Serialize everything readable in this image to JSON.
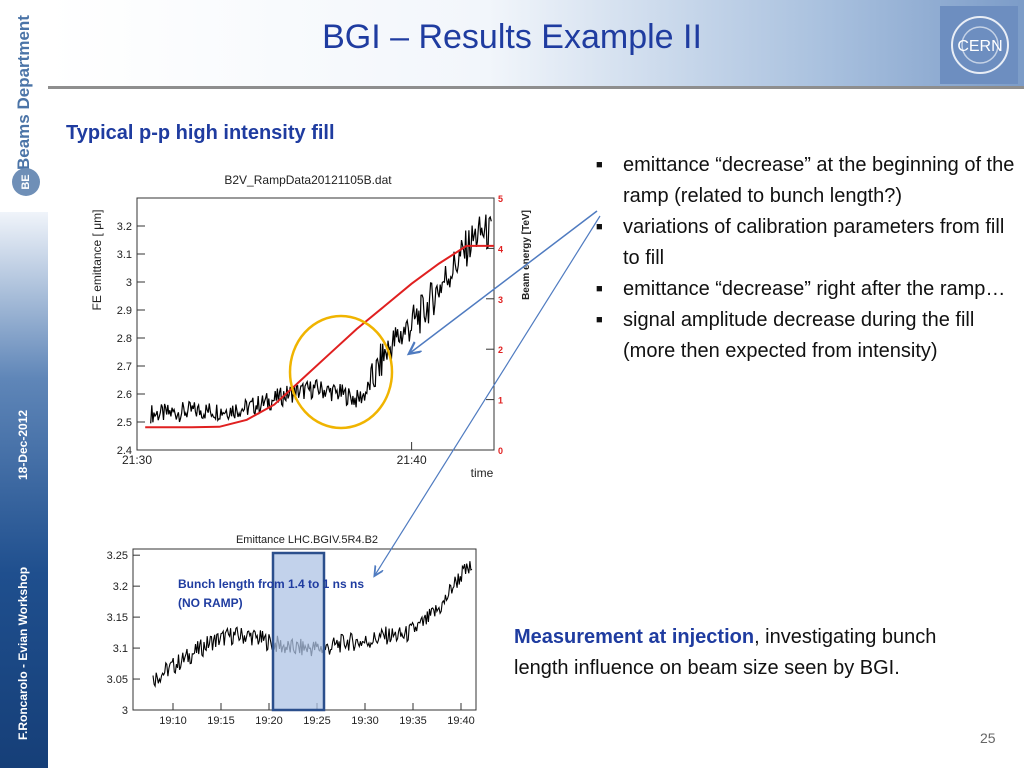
{
  "sidebar": {
    "department": "Beams Department",
    "badge": "BE",
    "date": "18-Dec-2012",
    "author_event": "F.Roncarolo - Evian Workshop"
  },
  "header": {
    "title": "BGI – Results Example II",
    "logo_text": "CERN"
  },
  "subtitle": "Typical p-p high intensity fill",
  "bullets": [
    "emittance “decrease” at the beginning of the ramp (related to bunch length?)",
    "variations of  calibration parameters from fill to fill",
    "emittance “decrease” right after the ramp…",
    "signal amplitude decrease during the fill (more then expected from intensity)"
  ],
  "note": {
    "strong": "Measurement at injection",
    "rest": ", investigating bunch length influence on beam size seen by BGI."
  },
  "page_number": "25",
  "chart_data": [
    {
      "type": "line",
      "title": "B2V_RampData20121105B.dat",
      "xlabel": "time",
      "ylabel": "FE emittance [ μm]",
      "y2label": "Beam energy [TeV]",
      "x_ticks": [
        "21:30",
        "21:40"
      ],
      "y_ticks": [
        "2.4",
        "2.5",
        "2.6",
        "2.7",
        "2.8",
        "2.9",
        "3",
        "3.1",
        "3.2"
      ],
      "y2_ticks": [
        "0",
        "1",
        "2",
        "3",
        "4",
        "5"
      ],
      "ylim": [
        2.4,
        3.3
      ],
      "y2lim": [
        0,
        5
      ],
      "xlim_minutes": [
        0,
        13
      ],
      "series": [
        {
          "axis": "left",
          "color": "#000000",
          "x": [
            0,
            1,
            2,
            3,
            4,
            5,
            5.5,
            6,
            6.5,
            7,
            7.5,
            8,
            8.3,
            8.6,
            9,
            9.5,
            10,
            10.5,
            11,
            11.5,
            12,
            12.3,
            12.6,
            13
          ],
          "y": [
            2.53,
            2.53,
            2.54,
            2.54,
            2.55,
            2.58,
            2.6,
            2.61,
            2.62,
            2.61,
            2.6,
            2.58,
            2.6,
            2.65,
            2.74,
            2.8,
            2.85,
            2.9,
            2.98,
            3.05,
            3.12,
            3.16,
            3.18,
            3.17
          ]
        },
        {
          "axis": "right",
          "color": "#e02020",
          "x": [
            0,
            1,
            2,
            3,
            4,
            5,
            6,
            7,
            8,
            9,
            10,
            11,
            12,
            12.5,
            13
          ],
          "y": [
            0.45,
            0.45,
            0.45,
            0.46,
            0.6,
            0.9,
            1.4,
            1.9,
            2.4,
            2.85,
            3.3,
            3.7,
            4.05,
            4.05,
            4.05
          ]
        }
      ],
      "highlight": "circle",
      "highlight_color": "#f0b400"
    },
    {
      "type": "line",
      "title": "Emittance LHC.BGIV.5R4.B2",
      "x_ticks": [
        "19:10",
        "19:15",
        "19:20",
        "19:25",
        "19:30",
        "19:35",
        "19:40"
      ],
      "y_ticks": [
        "3",
        "3.05",
        "3.1",
        "3.15",
        "3.2",
        "3.25"
      ],
      "ylim": [
        3.0,
        3.26
      ],
      "xlim_minutes": [
        0,
        33
      ],
      "series": [
        {
          "color": "#000000",
          "x": [
            0,
            2,
            4,
            6,
            8,
            10,
            12,
            14,
            16,
            18,
            20,
            22,
            24,
            26,
            28,
            30,
            31,
            32,
            33
          ],
          "y": [
            3.05,
            3.07,
            3.09,
            3.11,
            3.12,
            3.12,
            3.11,
            3.1,
            3.1,
            3.1,
            3.11,
            3.11,
            3.12,
            3.12,
            3.14,
            3.17,
            3.2,
            3.22,
            3.23
          ]
        }
      ],
      "annotation": "Bunch length from 1.4 to 1 ns ns (NO RAMP)",
      "annotation_color": "#1f3ca0"
    }
  ]
}
